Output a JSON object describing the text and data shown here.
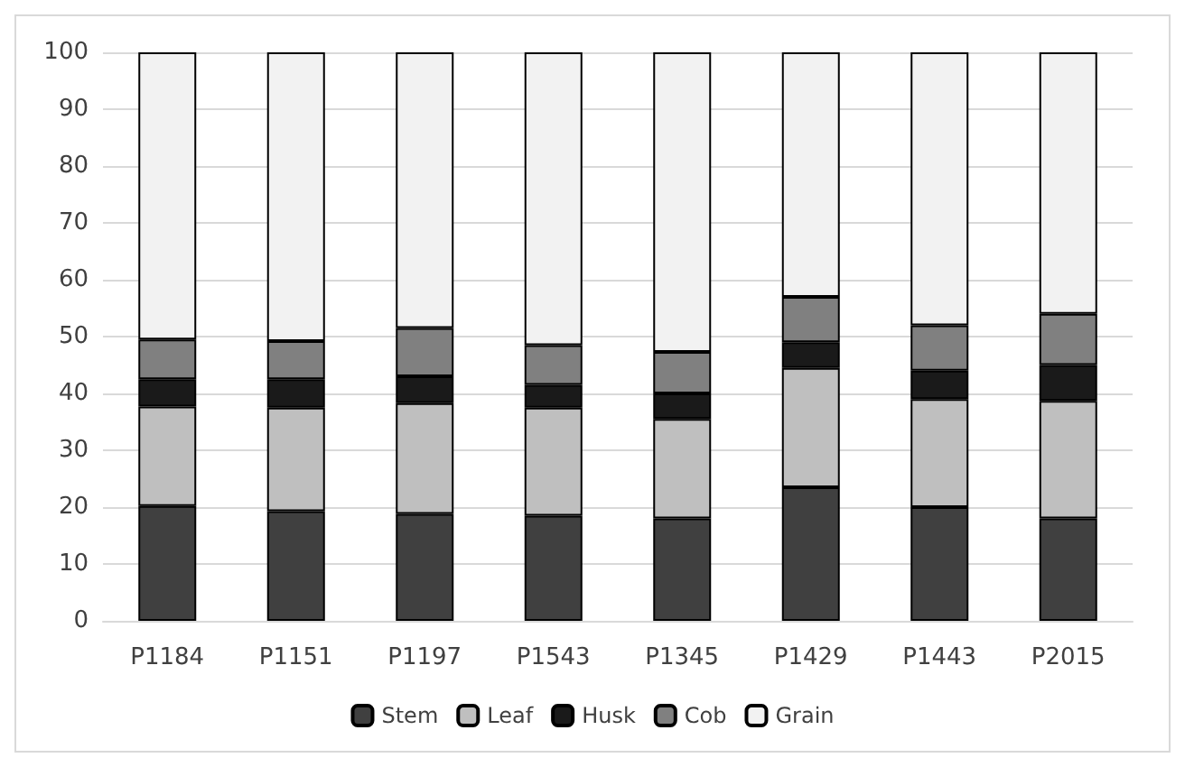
{
  "chart_data": {
    "type": "bar",
    "stacked": true,
    "categories": [
      "P1184",
      "P1151",
      "P1197",
      "P1543",
      "P1345",
      "P1429",
      "P1443",
      "P2015"
    ],
    "series": [
      {
        "name": "Stem",
        "color": "#404040",
        "values": [
          20.2,
          19.3,
          18.8,
          18.5,
          18,
          23.5,
          20,
          18
        ]
      },
      {
        "name": "Leaf",
        "color": "#bfbfbf",
        "values": [
          17.5,
          18.2,
          19.5,
          19,
          17.5,
          21,
          19,
          20.7
        ]
      },
      {
        "name": "Husk",
        "color": "#1a1a1a",
        "values": [
          4.8,
          5,
          4.7,
          4,
          4.5,
          4.5,
          5,
          6.3
        ]
      },
      {
        "name": "Cob",
        "color": "#808080",
        "values": [
          7,
          6.7,
          8.5,
          7,
          7.3,
          8,
          8,
          9
        ]
      },
      {
        "name": "Grain",
        "color": "#f2f2f2",
        "values": [
          50.5,
          50.8,
          48.5,
          51.5,
          52.7,
          43,
          48,
          46
        ]
      }
    ],
    "ylim": [
      0,
      100
    ],
    "yticks": [
      0,
      10,
      20,
      30,
      40,
      50,
      60,
      70,
      80,
      90,
      100
    ],
    "grid": "y",
    "legend": "bottom"
  }
}
